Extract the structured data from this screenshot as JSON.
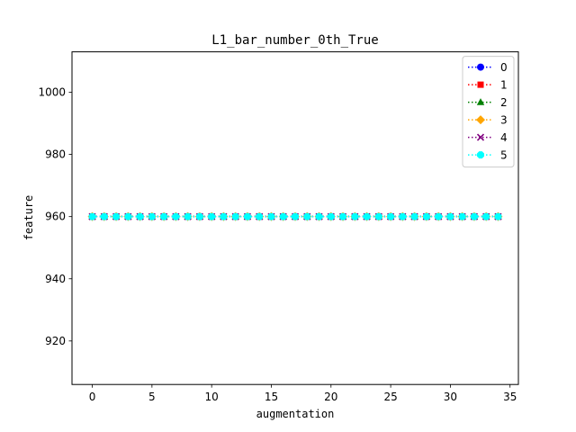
{
  "chart_data": {
    "type": "line",
    "title": "L1_bar_number_0th_True",
    "xlabel": "augmentation",
    "ylabel": "feature",
    "xlim": [
      -1.7,
      35.7
    ],
    "ylim": [
      906,
      1013
    ],
    "xticks": [
      0,
      5,
      10,
      15,
      20,
      25,
      30,
      35
    ],
    "yticks": [
      920,
      940,
      960,
      980,
      1000
    ],
    "x": [
      0,
      1,
      2,
      3,
      4,
      5,
      6,
      7,
      8,
      9,
      10,
      11,
      12,
      13,
      14,
      15,
      16,
      17,
      18,
      19,
      20,
      21,
      22,
      23,
      24,
      25,
      26,
      27,
      28,
      29,
      30,
      31,
      32,
      33,
      34
    ],
    "grid": false,
    "legend_position": "top-right",
    "series": [
      {
        "name": "0",
        "color": "#0000ff",
        "marker": "circle",
        "line_style": "dotted",
        "values": [
          960,
          960,
          960,
          960,
          960,
          960,
          960,
          960,
          960,
          960,
          960,
          960,
          960,
          960,
          960,
          960,
          960,
          960,
          960,
          960,
          960,
          960,
          960,
          960,
          960,
          960,
          960,
          960,
          960,
          960,
          960,
          960,
          960,
          960,
          960
        ]
      },
      {
        "name": "1",
        "color": "#ff0000",
        "marker": "square",
        "line_style": "dotted",
        "values": [
          960,
          960,
          960,
          960,
          960,
          960,
          960,
          960,
          960,
          960,
          960,
          960,
          960,
          960,
          960,
          960,
          960,
          960,
          960,
          960,
          960,
          960,
          960,
          960,
          960,
          960,
          960,
          960,
          960,
          960,
          960,
          960,
          960,
          960,
          960
        ]
      },
      {
        "name": "2",
        "color": "#008000",
        "marker": "triangle",
        "line_style": "dotted",
        "values": [
          960,
          960,
          960,
          960,
          960,
          960,
          960,
          960,
          960,
          960,
          960,
          960,
          960,
          960,
          960,
          960,
          960,
          960,
          960,
          960,
          960,
          960,
          960,
          960,
          960,
          960,
          960,
          960,
          960,
          960,
          960,
          960,
          960,
          960,
          960
        ]
      },
      {
        "name": "3",
        "color": "#ffa500",
        "marker": "diamond",
        "line_style": "dotted",
        "values": [
          960,
          960,
          960,
          960,
          960,
          960,
          960,
          960,
          960,
          960,
          960,
          960,
          960,
          960,
          960,
          960,
          960,
          960,
          960,
          960,
          960,
          960,
          960,
          960,
          960,
          960,
          960,
          960,
          960,
          960,
          960,
          960,
          960,
          960,
          960
        ]
      },
      {
        "name": "4",
        "color": "#800080",
        "marker": "x",
        "line_style": "dotted",
        "values": [
          960,
          960,
          960,
          960,
          960,
          960,
          960,
          960,
          960,
          960,
          960,
          960,
          960,
          960,
          960,
          960,
          960,
          960,
          960,
          960,
          960,
          960,
          960,
          960,
          960,
          960,
          960,
          960,
          960,
          960,
          960,
          960,
          960,
          960,
          960
        ]
      },
      {
        "name": "5",
        "color": "#00ffff",
        "marker": "octagon",
        "line_style": "dotted",
        "values": [
          960,
          960,
          960,
          960,
          960,
          960,
          960,
          960,
          960,
          960,
          960,
          960,
          960,
          960,
          960,
          960,
          960,
          960,
          960,
          960,
          960,
          960,
          960,
          960,
          960,
          960,
          960,
          960,
          960,
          960,
          960,
          960,
          960,
          960,
          960
        ]
      }
    ]
  }
}
